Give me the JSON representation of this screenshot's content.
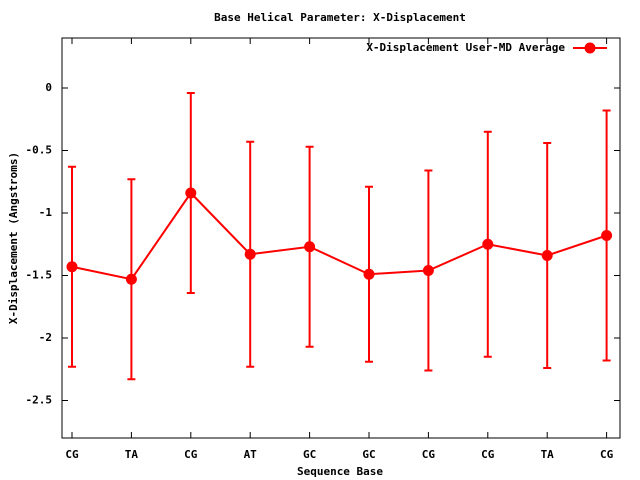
{
  "chart_data": {
    "type": "line_errorbar",
    "title": "Base  Helical Parameter: X-Displacement",
    "x_label": "Sequence Base",
    "y_label": "X-Displacement (Angstroms)",
    "categories": [
      "CG",
      "TA",
      "CG",
      "AT",
      "GC",
      "GC",
      "CG",
      "CG",
      "TA",
      "CG"
    ],
    "series": [
      {
        "name": "X-Displacement User-MD Average",
        "color": "#ff0000",
        "values": [
          -1.43,
          -1.53,
          -0.84,
          -1.33,
          -1.27,
          -1.49,
          -1.46,
          -1.25,
          -1.34,
          -1.18
        ],
        "errors": [
          0.8,
          0.8,
          0.8,
          0.9,
          0.8,
          0.7,
          0.8,
          0.9,
          0.9,
          1.0
        ]
      }
    ],
    "ylim": [
      -2.8,
      0.4
    ],
    "yticks": [
      0,
      -0.5,
      -1,
      -1.5,
      -2,
      -2.5
    ],
    "grid": false,
    "legend": "top-right"
  }
}
